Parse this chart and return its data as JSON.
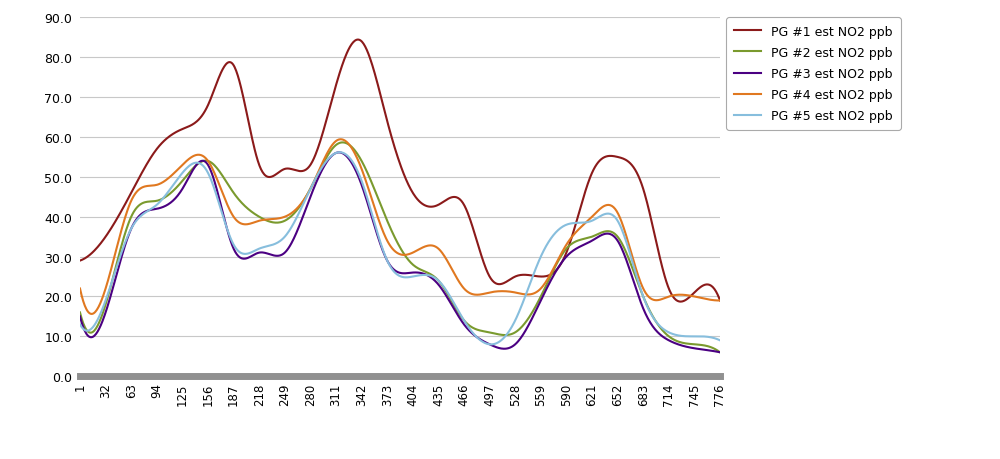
{
  "x_ticks": [
    1,
    32,
    63,
    94,
    125,
    156,
    187,
    218,
    249,
    280,
    311,
    342,
    373,
    404,
    435,
    466,
    497,
    528,
    559,
    590,
    621,
    652,
    683,
    714,
    745,
    776
  ],
  "series_colors": {
    "PG #1 est NO2 ppb": "#8B1A1A",
    "PG #2 est NO2 ppb": "#7A9A2E",
    "PG #3 est NO2 ppb": "#4B0082",
    "PG #4 est NO2 ppb": "#E07820",
    "PG #5 est NO2 ppb": "#87BEDD"
  },
  "legend_labels": [
    "PG #1 est NO2 ppb",
    "PG #2 est NO2 ppb",
    "PG #3 est NO2 ppb",
    "PG #4 est NO2 ppb",
    "PG #5 est NO2 ppb"
  ],
  "ylim": [
    0.0,
    90.0
  ],
  "ytick_labels": [
    "0.0",
    "10.0",
    "20.0",
    "30.0",
    "40.0",
    "50.0",
    "60.0",
    "70.0",
    "80.0",
    "90.0"
  ],
  "ytick_values": [
    0.0,
    10.0,
    20.0,
    30.0,
    40.0,
    50.0,
    60.0,
    70.0,
    80.0,
    90.0
  ],
  "background_color": "#ffffff",
  "grid_color": "#c8c8c8",
  "line_width": 1.5,
  "pg1": [
    29,
    35,
    46,
    57,
    62,
    68,
    78,
    53,
    52,
    53,
    73,
    84,
    64,
    46,
    43,
    43,
    25,
    25,
    25,
    31,
    51,
    55,
    47,
    22,
    21,
    19
  ],
  "pg2": [
    16,
    18,
    40,
    44,
    49,
    54,
    46,
    40,
    39,
    47,
    58,
    54,
    39,
    28,
    24,
    14,
    11,
    11,
    20,
    32,
    35,
    35,
    20,
    10,
    8,
    6
  ],
  "pg3": [
    15,
    16,
    37,
    42,
    47,
    53,
    32,
    31,
    31,
    45,
    56,
    48,
    29,
    26,
    23,
    13,
    8,
    8,
    19,
    30,
    34,
    34,
    17,
    9,
    7,
    6
  ],
  "pg4": [
    22,
    22,
    44,
    48,
    53,
    54,
    40,
    39,
    40,
    47,
    59,
    52,
    34,
    31,
    32,
    22,
    21,
    21,
    22,
    33,
    40,
    41,
    22,
    20,
    20,
    19
  ],
  "pg5": [
    13,
    19,
    37,
    43,
    51,
    51,
    33,
    32,
    35,
    47,
    56,
    49,
    29,
    25,
    24,
    14,
    8,
    14,
    30,
    38,
    39,
    39,
    20,
    11,
    10,
    9
  ],
  "figure_width": 10.0,
  "figure_height": 4.6,
  "dpi": 100
}
